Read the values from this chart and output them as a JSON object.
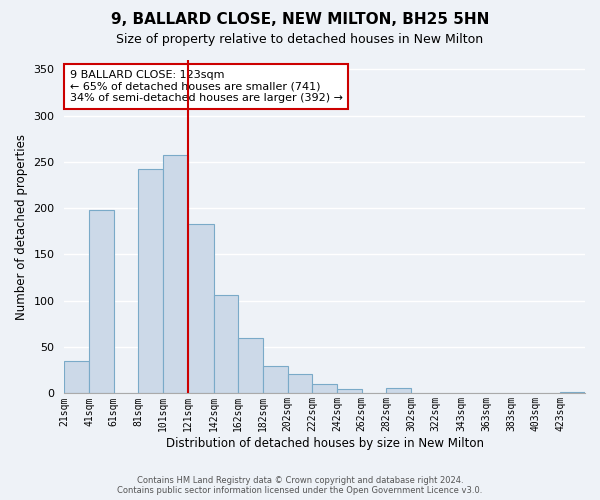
{
  "title": "9, BALLARD CLOSE, NEW MILTON, BH25 5HN",
  "subtitle": "Size of property relative to detached houses in New Milton",
  "xlabel": "Distribution of detached houses by size in New Milton",
  "ylabel": "Number of detached properties",
  "bin_edges": [
    21,
    41,
    61,
    81,
    101,
    121,
    142,
    162,
    182,
    202,
    222,
    242,
    262,
    282,
    302,
    322,
    343,
    363,
    383,
    403,
    423,
    443
  ],
  "bin_labels": [
    "21sqm",
    "41sqm",
    "61sqm",
    "81sqm",
    "101sqm",
    "121sqm",
    "142sqm",
    "162sqm",
    "182sqm",
    "202sqm",
    "222sqm",
    "242sqm",
    "262sqm",
    "282sqm",
    "302sqm",
    "322sqm",
    "343sqm",
    "363sqm",
    "383sqm",
    "403sqm",
    "423sqm"
  ],
  "bar_values": [
    35,
    198,
    0,
    242,
    257,
    183,
    106,
    60,
    30,
    21,
    10,
    5,
    0,
    6,
    0,
    0,
    0,
    0,
    0,
    0,
    2
  ],
  "bar_color": "#ccd9e8",
  "bar_edge_color": "#7aaac8",
  "vline_x": 121,
  "vline_color": "#cc0000",
  "annotation_title": "9 BALLARD CLOSE: 123sqm",
  "annotation_line1": "← 65% of detached houses are smaller (741)",
  "annotation_line2": "34% of semi-detached houses are larger (392) →",
  "annotation_box_color": "#ffffff",
  "annotation_box_edge": "#cc0000",
  "ylim": [
    0,
    360
  ],
  "yticks": [
    0,
    50,
    100,
    150,
    200,
    250,
    300,
    350
  ],
  "footer1": "Contains HM Land Registry data © Crown copyright and database right 2024.",
  "footer2": "Contains public sector information licensed under the Open Government Licence v3.0.",
  "bg_color": "#eef2f7"
}
